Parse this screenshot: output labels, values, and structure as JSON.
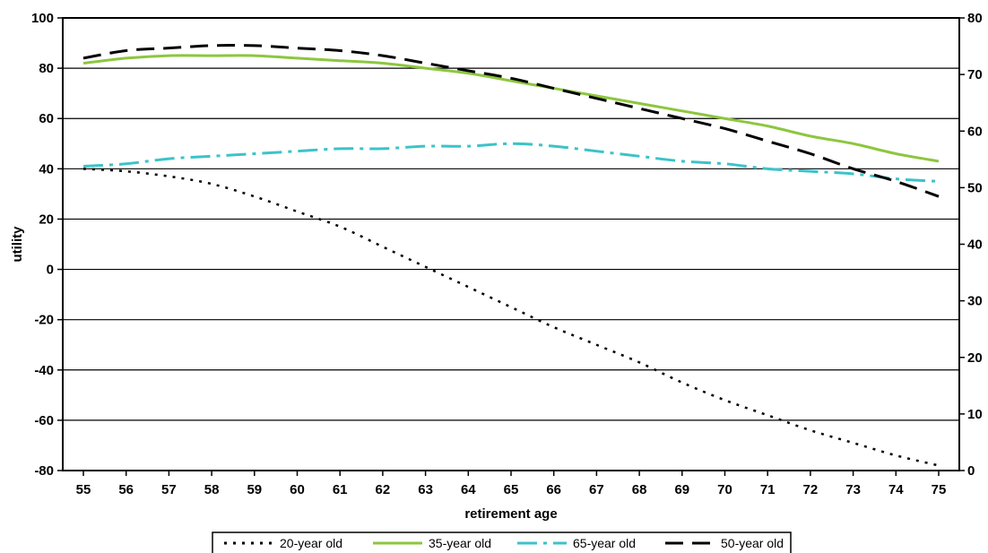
{
  "chart_data": {
    "type": "line",
    "title": "",
    "xlabel": "retirement age",
    "ylabel": "utility",
    "x": [
      55,
      56,
      57,
      58,
      59,
      60,
      61,
      62,
      63,
      64,
      65,
      66,
      67,
      68,
      69,
      70,
      71,
      72,
      73,
      74,
      75
    ],
    "x_ticks": [
      "55",
      "56",
      "57",
      "58",
      "59",
      "60",
      "61",
      "62",
      "63",
      "64",
      "65",
      "66",
      "67",
      "68",
      "69",
      "70",
      "71",
      "72",
      "73",
      "74",
      "75"
    ],
    "ylim_left": [
      -80,
      100
    ],
    "y_ticks_left": [
      "100",
      "80",
      "60",
      "40",
      "20",
      "0",
      "-20",
      "-40",
      "-60",
      "-80"
    ],
    "ylim_right": [
      0,
      80
    ],
    "y_ticks_right": [
      "80",
      "70",
      "60",
      "50",
      "40",
      "30",
      "20",
      "10",
      "0"
    ],
    "grid": "horizontal",
    "legend_position": "bottom",
    "series": [
      {
        "name": "20-year old",
        "axis": "left",
        "color": "#000000",
        "dash": "dotted",
        "values": [
          40,
          39,
          37,
          34,
          29,
          23,
          17,
          9,
          1,
          -7,
          -15,
          -23,
          -30,
          -37,
          -45,
          -52,
          -58,
          -64,
          -69,
          -74,
          -78
        ]
      },
      {
        "name": "35-year old",
        "axis": "left",
        "color": "#8dc63f",
        "dash": "solid",
        "values": [
          82,
          84,
          85,
          85,
          85,
          84,
          83,
          82,
          80,
          78,
          75,
          72,
          69,
          66,
          63,
          60,
          57,
          53,
          50,
          46,
          43
        ]
      },
      {
        "name": "65-year old",
        "axis": "left",
        "color": "#3bc3c8",
        "dash": "dashdot",
        "values": [
          41,
          42,
          44,
          45,
          46,
          47,
          48,
          48,
          49,
          49,
          50,
          49,
          47,
          45,
          43,
          42,
          40,
          39,
          38,
          36,
          35
        ]
      },
      {
        "name": "50-year old",
        "axis": "left",
        "color": "#000000",
        "dash": "longdash",
        "values": [
          84,
          87,
          88,
          89,
          89,
          88,
          87,
          85,
          82,
          79,
          76,
          72,
          68,
          64,
          60,
          56,
          51,
          46,
          40,
          35,
          29
        ]
      }
    ]
  }
}
